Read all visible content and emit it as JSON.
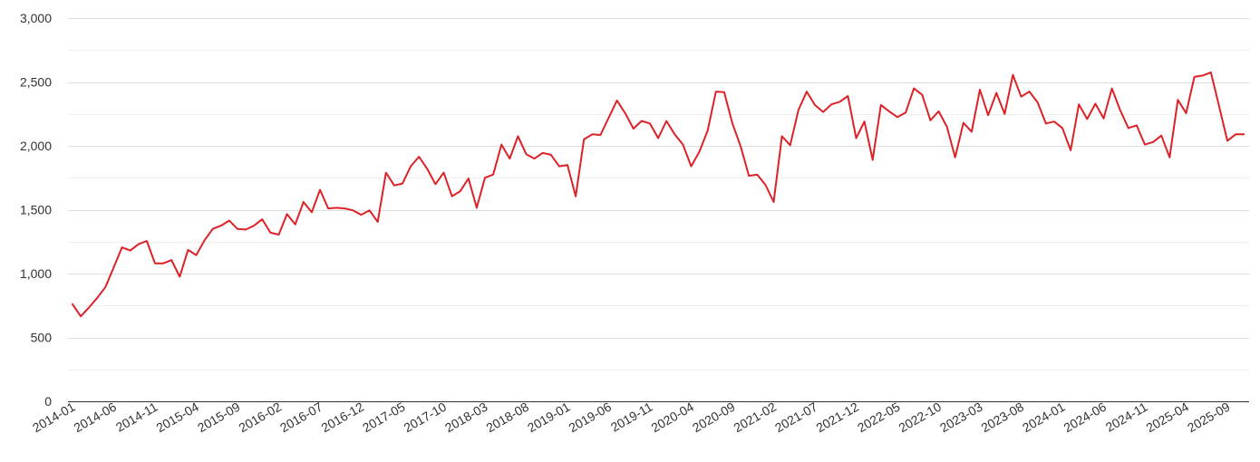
{
  "chart_data": {
    "type": "line",
    "title": "",
    "xlabel": "",
    "ylabel": "",
    "ylim": [
      0,
      3000
    ],
    "y_ticks": [
      0,
      500,
      1000,
      1500,
      2000,
      2500,
      3000
    ],
    "y_tick_labels": [
      "0",
      "500",
      "1,000",
      "1,500",
      "2,000",
      "2,500",
      "3,000"
    ],
    "x_tick_labels": [
      "2014-01",
      "2014-06",
      "2014-11",
      "2015-04",
      "2015-09",
      "2016-02",
      "2016-07",
      "2016-12",
      "2017-05",
      "2017-10",
      "2018-03",
      "2018-08",
      "2019-01",
      "2019-06",
      "2019-11",
      "2020-04",
      "2020-09",
      "2021-02",
      "2021-07",
      "2021-12",
      "2022-05",
      "2022-10",
      "2023-03",
      "2023-08",
      "2024-01",
      "2024-06",
      "2024-11",
      "2025-04",
      "2025-09"
    ],
    "grid": true,
    "legend": "none",
    "colors": {
      "series": "#dc2127",
      "grid": "#dddddd",
      "axis": "#333333"
    },
    "x_start": "2014-01",
    "series": [
      {
        "values": [
          760,
          665,
          735,
          810,
          895,
          1050,
          1205,
          1180,
          1230,
          1255,
          1080,
          1080,
          1105,
          975,
          1185,
          1145,
          1260,
          1350,
          1375,
          1415,
          1350,
          1345,
          1375,
          1425,
          1320,
          1305,
          1465,
          1385,
          1560,
          1480,
          1655,
          1510,
          1515,
          1510,
          1495,
          1460,
          1495,
          1405,
          1790,
          1690,
          1705,
          1840,
          1915,
          1820,
          1700,
          1790,
          1605,
          1645,
          1745,
          1515,
          1750,
          1775,
          2010,
          1900,
          2075,
          1935,
          1900,
          1945,
          1930,
          1840,
          1850,
          1605,
          2050,
          2090,
          2085,
          2220,
          2355,
          2255,
          2135,
          2195,
          2175,
          2060,
          2195,
          2090,
          2010,
          1840,
          1955,
          2120,
          2425,
          2420,
          2175,
          1995,
          1765,
          1775,
          1695,
          1560,
          2075,
          2005,
          2280,
          2425,
          2320,
          2265,
          2325,
          2345,
          2390,
          2060,
          2190,
          1890,
          2320,
          2270,
          2225,
          2260,
          2450,
          2400,
          2200,
          2270,
          2150,
          1910,
          2180,
          2110,
          2440,
          2240,
          2415,
          2250,
          2555,
          2385,
          2425,
          2340,
          2175,
          2190,
          2140,
          1965,
          2325,
          2210,
          2330,
          2215,
          2450,
          2280,
          2140,
          2160,
          2010,
          2030,
          2080,
          1910,
          2360,
          2255,
          2540,
          2550,
          2575,
          2310,
          2040,
          2090,
          2090
        ]
      }
    ]
  }
}
